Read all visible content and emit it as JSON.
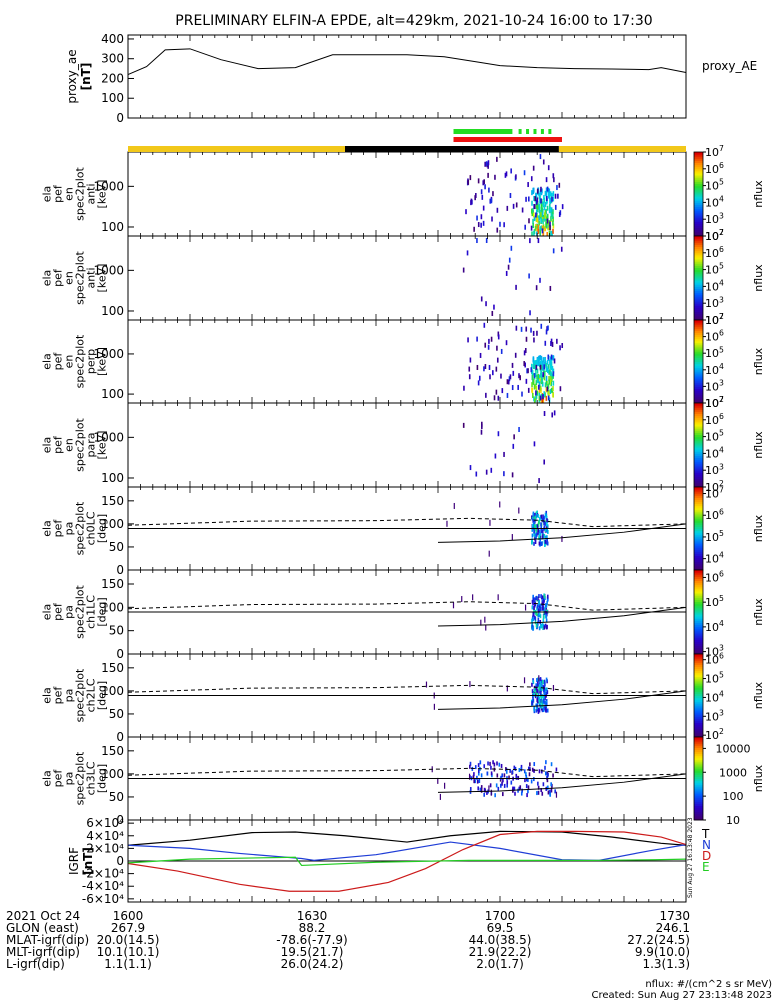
{
  "title": "PRELIMINARY ELFIN-A EPDE, alt=429km, 2021-10-24 16:00 to 17:30",
  "chart_data": {
    "type": "heatmap",
    "time_axis": {
      "start": "16:00",
      "end": "17:30",
      "tick_labels": [
        "1600",
        "1630",
        "1700",
        "1730"
      ]
    },
    "panels": [
      {
        "id": "proxy_ae",
        "type": "line",
        "ylabel": "proxy_ae [nT]",
        "legend": "proxy_AE",
        "yticks": [
          "0",
          "100",
          "200",
          "300",
          "400"
        ],
        "ylim": [
          0,
          420
        ],
        "x_min": [
          0,
          3,
          6,
          10,
          15,
          21,
          27,
          33,
          45,
          51,
          57,
          60,
          66,
          72,
          78,
          84,
          86,
          90
        ],
        "values": [
          220,
          260,
          345,
          350,
          295,
          250,
          255,
          320,
          320,
          310,
          280,
          265,
          255,
          250,
          248,
          245,
          255,
          230
        ]
      },
      {
        "id": "ant",
        "type": "spectrogram",
        "ylabel": [
          "ela",
          "pef",
          "en",
          "spec2plot",
          "anti",
          "[keV]"
        ],
        "yticks": [
          "100",
          "1000"
        ],
        "ylim_keV": [
          60,
          7000
        ],
        "zlabel": "nflux",
        "ztick_exponents": [
          2,
          3,
          4,
          5,
          6,
          7
        ],
        "zrange": [
          100,
          10000000
        ]
      },
      {
        "id": "ant2",
        "type": "spectrogram",
        "ylabel": [
          "ela",
          "pef",
          "en",
          "spec2plot",
          "anti",
          "[keV]"
        ],
        "yticks": [
          "100",
          "1000"
        ],
        "ylim_keV": [
          60,
          7000
        ],
        "zlabel": "nflux",
        "ztick_exponents": [
          2,
          3,
          4,
          5,
          6,
          7
        ],
        "zrange": [
          100,
          10000000
        ]
      },
      {
        "id": "perp",
        "type": "spectrogram",
        "ylabel": [
          "ela",
          "pef",
          "en",
          "spec2plot",
          "perp",
          "[keV]"
        ],
        "yticks": [
          "100",
          "1000"
        ],
        "ylim_keV": [
          60,
          7000
        ],
        "zlabel": "nflux",
        "ztick_exponents": [
          2,
          3,
          4,
          5,
          6,
          7
        ],
        "zrange": [
          100,
          10000000
        ]
      },
      {
        "id": "para",
        "type": "spectrogram",
        "ylabel": [
          "ela",
          "pef",
          "en",
          "spec2plot",
          "para",
          "[keV]"
        ],
        "yticks": [
          "100",
          "1000"
        ],
        "ylim_keV": [
          60,
          7000
        ],
        "zlabel": "nflux",
        "ztick_exponents": [
          2,
          3,
          4,
          5,
          6,
          7
        ],
        "zrange": [
          100,
          10000000
        ]
      },
      {
        "id": "ch0LC",
        "type": "spectrogram",
        "ylabel": [
          "ela",
          "pef",
          "pa",
          "spec2plot",
          "ch0LC",
          "[deg]"
        ],
        "yticks": [
          "0",
          "50",
          "100",
          "150"
        ],
        "ylim_deg": [
          0,
          180
        ],
        "zlabel": "nflux",
        "ztick_exponents": [
          4,
          5,
          6,
          7
        ],
        "zrange": [
          3000,
          20000000
        ]
      },
      {
        "id": "ch1LC",
        "type": "spectrogram",
        "ylabel": [
          "ela",
          "pef",
          "pa",
          "spec2plot",
          "ch1LC",
          "[deg]"
        ],
        "yticks": [
          "0",
          "50",
          "100",
          "150"
        ],
        "ylim_deg": [
          0,
          180
        ],
        "zlabel": "nflux",
        "ztick_exponents": [
          3,
          4,
          5,
          6
        ],
        "zrange": [
          800,
          2000000
        ]
      },
      {
        "id": "ch2LC",
        "type": "spectrogram",
        "ylabel": [
          "ela",
          "pef",
          "pa",
          "spec2plot",
          "ch2LC",
          "[deg]"
        ],
        "yticks": [
          "0",
          "50",
          "100",
          "150"
        ],
        "ylim_deg": [
          0,
          180
        ],
        "zlabel": "nflux",
        "ztick_exponents": [
          2,
          3,
          4,
          5,
          6
        ],
        "zrange": [
          80,
          2000000
        ]
      },
      {
        "id": "ch3LC",
        "type": "spectrogram",
        "ylabel": [
          "ela",
          "pef",
          "pa",
          "spec2plot",
          "ch3LC",
          "[deg]"
        ],
        "yticks": [
          "0",
          "50",
          "100",
          "150"
        ],
        "ylim_deg": [
          0,
          180
        ],
        "zlabel": "nflux",
        "ztick_labels": [
          "10",
          "100",
          "1000",
          "10000"
        ],
        "zrange": [
          10,
          30000
        ]
      },
      {
        "id": "igrf",
        "type": "line",
        "ylabel": [
          "IGRF",
          "[nT]"
        ],
        "yticks": [
          "-6×10⁴",
          "-4×10⁴",
          "-2×10⁴",
          "0",
          "2×10⁴",
          "4×10⁴",
          "6×10⁴"
        ],
        "ylim": [
          -65000,
          65000
        ],
        "legend": [
          {
            "name": "T",
            "color": "#000000"
          },
          {
            "name": "N",
            "color": "#1f3dd6"
          },
          {
            "name": "D",
            "color": "#cc1a1a"
          },
          {
            "name": "E",
            "color": "#22cc22"
          }
        ],
        "series": [
          {
            "name": "T",
            "color": "#000000",
            "x_min": [
              0,
              10,
              20,
              27,
              35,
              45,
              52,
              60,
              70,
              78,
              86,
              90
            ],
            "values": [
              25000,
              33000,
              45000,
              46000,
              40000,
              30000,
              40000,
              47000,
              46000,
              38000,
              28000,
              25000
            ]
          },
          {
            "name": "N",
            "color": "#1f3dd6",
            "x_min": [
              0,
              10,
              18,
              28,
              30,
              40,
              52,
              60,
              70,
              76,
              84,
              90
            ],
            "values": [
              25000,
              20000,
              12000,
              4000,
              1000,
              10000,
              30000,
              20000,
              2000,
              1000,
              16000,
              26000
            ]
          },
          {
            "name": "D",
            "color": "#cc1a1a",
            "x_min": [
              0,
              8,
              18,
              26,
              34,
              42,
              48,
              54,
              60,
              66,
              72,
              80,
              86,
              90
            ],
            "values": [
              -4000,
              -16000,
              -37000,
              -48000,
              -48000,
              -34000,
              -12000,
              18000,
              42000,
              47000,
              47000,
              46000,
              38000,
              26000
            ]
          },
          {
            "name": "E",
            "color": "#22cc22",
            "x_min": [
              0,
              10,
              27,
              28,
              40,
              55,
              68,
              75,
              85,
              90
            ],
            "values": [
              -3000,
              3000,
              6000,
              -7000,
              -2000,
              1000,
              1000,
              900,
              2000,
              3000
            ]
          }
        ]
      }
    ],
    "status_bars": {
      "top": [
        {
          "from_min": 52.5,
          "to_min": 68.5,
          "color": "#22dd22",
          "label_from": ""
        }
      ],
      "bottom": [
        {
          "from_min": 52.5,
          "to_min": 70,
          "color": "#ee1111"
        }
      ],
      "base": [
        {
          "from_min": 0,
          "to_min": 35,
          "color": "#f2c81a"
        },
        {
          "from_min": 35,
          "to_min": 69.5,
          "color": "#000000"
        },
        {
          "from_min": 69.5,
          "to_min": 90,
          "color": "#f2c81a"
        }
      ]
    }
  },
  "ephemeris": {
    "rows": [
      {
        "label": "2021 Oct 24",
        "values": [
          "1600",
          "1630",
          "1700",
          "1730"
        ]
      },
      {
        "label": "GLON (east)",
        "values": [
          "267.9",
          "88.2",
          "69.5",
          "246.1"
        ]
      },
      {
        "label": "MLAT-igrf(dip)",
        "values": [
          "20.0(14.5)",
          "-78.6(-77.9)",
          "44.0(38.5)",
          "27.2(24.5)"
        ]
      },
      {
        "label": "MLT-igrf(dip)",
        "values": [
          "10.1(10.1)",
          "19.5(21.7)",
          "21.9(22.2)",
          "9.9(10.0)"
        ]
      },
      {
        "label": "L-igrf(dip)",
        "values": [
          "1.1(1.1)",
          "26.0(24.2)",
          "2.0(1.7)",
          "1.3(1.3)"
        ]
      }
    ]
  },
  "footer": {
    "units": "nflux: #/(cm^2 s sr MeV)",
    "created": "Created: Sun Aug 27 23:13:48 2023",
    "side_stamp": "Sun Aug 27 16:13:48 2023"
  }
}
